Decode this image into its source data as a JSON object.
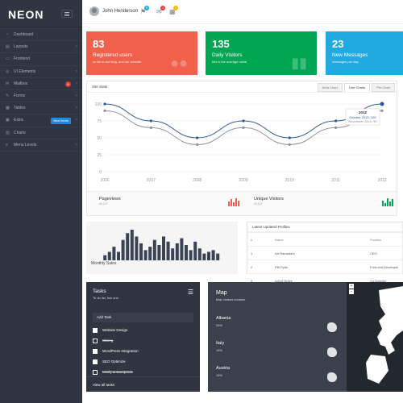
{
  "brand": {
    "logo": "NEON"
  },
  "sidebar": {
    "items": [
      {
        "label": "Dashboard",
        "icon": "gauge-icon"
      },
      {
        "label": "Layouts",
        "icon": "layout-icon"
      },
      {
        "label": "Frontend",
        "icon": "monitor-icon"
      },
      {
        "label": "UI Elements",
        "icon": "target-icon"
      },
      {
        "label": "Mailbox",
        "icon": "mail-icon",
        "badge": "8"
      },
      {
        "label": "Forms",
        "icon": "pencil-icon"
      },
      {
        "label": "Tables",
        "icon": "table-icon"
      },
      {
        "label": "Extra",
        "icon": "bag-icon",
        "badge": "New Items"
      },
      {
        "label": "Charts",
        "icon": "chart-icon"
      },
      {
        "label": "Menu Levels",
        "icon": "list-icon"
      }
    ]
  },
  "topbar": {
    "user": "John Henderson",
    "badges": [
      "6",
      "1",
      "1"
    ]
  },
  "tiles": [
    {
      "number": "83",
      "title": "Registered users",
      "sub": "so far in our blog, and our website.",
      "color": "#f0614c"
    },
    {
      "number": "135",
      "title": "Daily Visitors",
      "sub": "this is the average value.",
      "color": "#00a651"
    },
    {
      "number": "23",
      "title": "New Messages",
      "sub": "messages per day.",
      "color": "#21a9e1"
    }
  ],
  "sitestats": {
    "title": "Site Stats",
    "tabs": [
      "Area Chart",
      "Line Charts",
      "Pie Chart"
    ]
  },
  "chart_data": {
    "type": "line",
    "x": [
      "2006",
      "2007",
      "2008",
      "2009",
      "2010",
      "2011",
      "2012"
    ],
    "ylim": [
      0,
      100
    ],
    "yticks": [
      "100",
      "75",
      "50",
      "25",
      "0"
    ],
    "series": [
      {
        "values": [
          100,
          75,
          50,
          75,
          50,
          75,
          100
        ],
        "color": "#2b5796"
      },
      {
        "values": [
          90,
          65,
          40,
          65,
          40,
          65,
          90
        ],
        "color": "#8c939e"
      }
    ],
    "tooltip": {
      "title": "2012",
      "line1": "October 2013: 100",
      "line2": "November 2013: 90"
    }
  },
  "pageviews": {
    "label": "Pageviews",
    "value": "54,127"
  },
  "unique": {
    "label": "Unique Visitors",
    "value": "25,127"
  },
  "monthly": {
    "label": "Monthly Sales",
    "bars": [
      3,
      5,
      8,
      5,
      12,
      16,
      18,
      14,
      10,
      6,
      8,
      12,
      9,
      14,
      11,
      7,
      10,
      13,
      9,
      6,
      11,
      7,
      4,
      5,
      6,
      4
    ]
  },
  "profiles": {
    "title": "Latest Updated Profiles",
    "headers": [
      "#",
      "Name",
      "Position"
    ],
    "rows": [
      [
        "1",
        "Art Ramadani",
        "CEO"
      ],
      [
        "2",
        "Filli Pylla",
        "Font-end Developer"
      ],
      [
        "3",
        "Arlind Nushi",
        "Co-founder"
      ]
    ]
  },
  "tasks": {
    "title": "Tasks",
    "subtitle": "To do list, tick one.",
    "add": "Add Task",
    "items": [
      {
        "label": "Website Design",
        "checked": false,
        "done": false
      },
      {
        "label": "Slicing",
        "checked": true,
        "done": true
      },
      {
        "label": "WordPress Integration",
        "checked": false,
        "done": false
      },
      {
        "label": "SEO Optimize",
        "checked": false,
        "done": false
      },
      {
        "label": "Minify & Compress",
        "checked": true,
        "done": true
      }
    ],
    "footer": "View all tasks"
  },
  "map": {
    "title": "Map",
    "subtitle": "Map visitors location.",
    "countries": [
      {
        "name": "Albania",
        "pct": "25%"
      },
      {
        "name": "Italy",
        "pct": "15%"
      },
      {
        "name": "Austria",
        "pct": "15%"
      }
    ]
  }
}
